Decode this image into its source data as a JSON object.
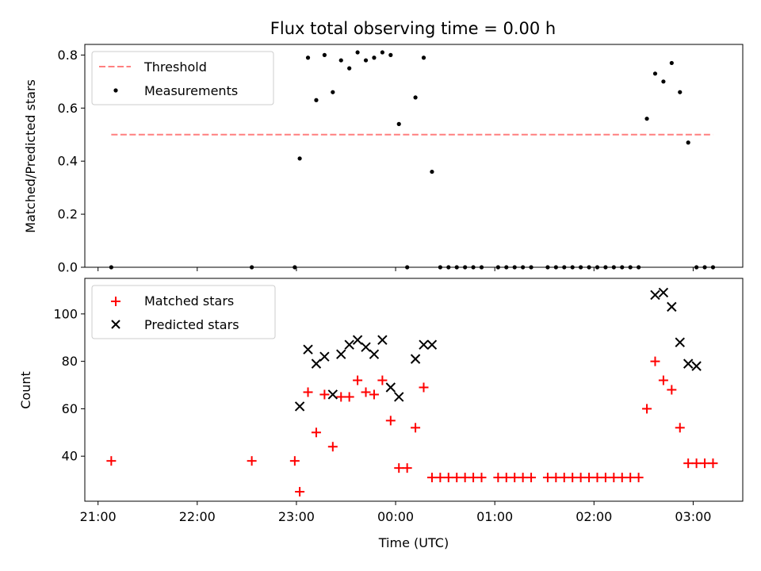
{
  "title": "Flux total observing time = 0.00 h",
  "chart_data": [
    {
      "type": "scatter",
      "ylabel": "Matched/Predicted stars",
      "xlim": [
        "20:52",
        "03:30"
      ],
      "ylim": [
        0,
        0.84
      ],
      "yticks": [
        "0.0",
        "0.2",
        "0.4",
        "0.6",
        "0.8"
      ],
      "legend": {
        "placement": "top-left",
        "entries": [
          "Threshold",
          "Measurements"
        ]
      },
      "threshold": {
        "name": "Threshold",
        "value": 0.5,
        "x_range": [
          "21:08",
          "03:12"
        ],
        "color": "#ff7f7f"
      },
      "series": [
        {
          "name": "Measurements",
          "color": "#000000",
          "x": [
            "21:08",
            "22:33",
            "22:59",
            "23:02",
            "23:07",
            "23:12",
            "23:17",
            "23:22",
            "23:27",
            "23:32",
            "23:37",
            "23:42",
            "23:47",
            "23:52",
            "23:57",
            "00:02",
            "00:07",
            "00:12",
            "00:17",
            "00:22",
            "00:27",
            "00:32",
            "00:37",
            "00:42",
            "00:47",
            "00:52",
            "01:02",
            "01:07",
            "01:12",
            "01:17",
            "01:22",
            "01:32",
            "01:37",
            "01:42",
            "01:47",
            "01:52",
            "01:57",
            "02:02",
            "02:07",
            "02:12",
            "02:17",
            "02:22",
            "02:27",
            "02:32",
            "02:37",
            "02:42",
            "02:47",
            "02:52",
            "02:57",
            "03:02",
            "03:07",
            "03:12"
          ],
          "y": [
            0,
            0,
            0,
            0.41,
            0.79,
            0.63,
            0.8,
            0.66,
            0.78,
            0.75,
            0.81,
            0.78,
            0.79,
            0.81,
            0.8,
            0.54,
            0,
            0.64,
            0.79,
            0.36,
            0,
            0,
            0,
            0,
            0,
            0,
            0,
            0,
            0,
            0,
            0,
            0,
            0,
            0,
            0,
            0,
            0,
            0,
            0,
            0,
            0,
            0,
            0,
            0.56,
            0.73,
            0.7,
            0.77,
            0.66,
            0.47,
            0,
            0,
            0
          ]
        }
      ]
    },
    {
      "type": "scatter",
      "xlabel": "Time (UTC)",
      "ylabel": "Count",
      "xlim": [
        "20:52",
        "03:30"
      ],
      "ylim": [
        21,
        115
      ],
      "yticks": [
        "40",
        "60",
        "80",
        "100"
      ],
      "xticks": [
        "21:00",
        "22:00",
        "23:00",
        "00:00",
        "01:00",
        "02:00",
        "03:00"
      ],
      "legend": {
        "placement": "top-left",
        "entries": [
          "Matched stars",
          "Predicted stars"
        ]
      },
      "series": [
        {
          "name": "Matched stars",
          "marker": "plus",
          "color": "#ff0000",
          "x": [
            "21:08",
            "22:33",
            "22:59",
            "23:02",
            "23:07",
            "23:12",
            "23:17",
            "23:22",
            "23:27",
            "23:32",
            "23:37",
            "23:42",
            "23:47",
            "23:52",
            "23:57",
            "00:02",
            "00:07",
            "00:12",
            "00:17",
            "00:22",
            "00:27",
            "00:32",
            "00:37",
            "00:42",
            "00:47",
            "00:52",
            "01:02",
            "01:07",
            "01:12",
            "01:17",
            "01:22",
            "01:32",
            "01:37",
            "01:42",
            "01:47",
            "01:52",
            "01:57",
            "02:02",
            "02:07",
            "02:12",
            "02:17",
            "02:22",
            "02:27",
            "02:32",
            "02:37",
            "02:42",
            "02:47",
            "02:52",
            "02:57",
            "03:02",
            "03:07",
            "03:12"
          ],
          "y": [
            38,
            38,
            38,
            25,
            67,
            50,
            66,
            44,
            65,
            65,
            72,
            67,
            66,
            72,
            55,
            35,
            35,
            52,
            69,
            31,
            31,
            31,
            31,
            31,
            31,
            31,
            31,
            31,
            31,
            31,
            31,
            31,
            31,
            31,
            31,
            31,
            31,
            31,
            31,
            31,
            31,
            31,
            31,
            60,
            80,
            72,
            68,
            52,
            37,
            37,
            37,
            37
          ]
        },
        {
          "name": "Predicted stars",
          "marker": "x",
          "color": "#000000",
          "x": [
            "23:02",
            "23:07",
            "23:12",
            "23:17",
            "23:22",
            "23:27",
            "23:32",
            "23:37",
            "23:42",
            "23:47",
            "23:52",
            "23:57",
            "00:02",
            "00:12",
            "00:17",
            "00:22",
            "02:37",
            "02:42",
            "02:47",
            "02:52",
            "02:57",
            "03:02"
          ],
          "y": [
            61,
            85,
            79,
            82,
            66,
            83,
            87,
            89,
            86,
            83,
            89,
            69,
            65,
            81,
            87,
            87,
            108,
            109,
            103,
            88,
            79,
            78
          ]
        }
      ]
    }
  ]
}
